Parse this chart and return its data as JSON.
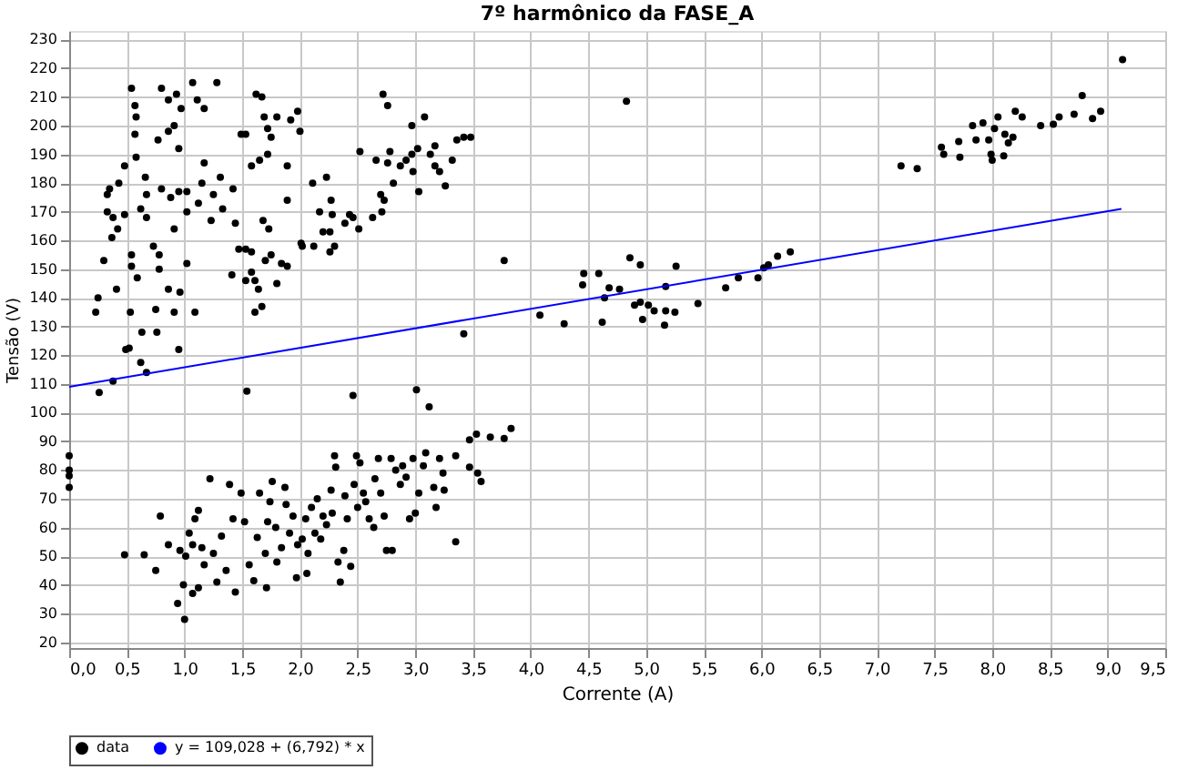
{
  "chart_data": {
    "type": "scatter",
    "title": "7º harmônico da FASE_A",
    "xlabel": "Corrente (A)",
    "ylabel": "Tensão (V)",
    "xlim": [
      0,
      9.5
    ],
    "ylim": [
      18,
      233
    ],
    "xticks": [
      {
        "value": 0,
        "label": "0,0"
      },
      {
        "value": 0.5,
        "label": "0,5"
      },
      {
        "value": 1,
        "label": "1,0"
      },
      {
        "value": 1.5,
        "label": "1,5"
      },
      {
        "value": 2,
        "label": "2,0"
      },
      {
        "value": 2.5,
        "label": "2,5"
      },
      {
        "value": 3,
        "label": "3,0"
      },
      {
        "value": 3.5,
        "label": "3,5"
      },
      {
        "value": 4,
        "label": "4,0"
      },
      {
        "value": 4.5,
        "label": "4,5"
      },
      {
        "value": 5,
        "label": "5,0"
      },
      {
        "value": 5.5,
        "label": "5,5"
      },
      {
        "value": 6,
        "label": "6,0"
      },
      {
        "value": 6.5,
        "label": "6,5"
      },
      {
        "value": 7,
        "label": "7,0"
      },
      {
        "value": 7.5,
        "label": "7,5"
      },
      {
        "value": 8,
        "label": "8,0"
      },
      {
        "value": 8.5,
        "label": "8,5"
      },
      {
        "value": 9,
        "label": "9,0"
      },
      {
        "value": 9.5,
        "label": "9,5"
      }
    ],
    "yticks": [
      20,
      30,
      40,
      50,
      60,
      70,
      80,
      90,
      100,
      110,
      120,
      130,
      140,
      150,
      160,
      170,
      180,
      190,
      200,
      210,
      220,
      230
    ],
    "grid": true,
    "legend": "bottom",
    "series": [
      {
        "name": "data",
        "marker": "circle",
        "color": "#000000",
        "x": [
          0.23,
          0.25,
          0.3,
          0.33,
          0.35,
          0.33,
          0.38,
          0.48,
          0.41,
          0.37,
          0.42,
          0.43,
          0.48,
          0.54,
          0.57,
          0.58,
          0.57,
          0.58,
          0.54,
          0.53,
          0.54,
          0.59,
          0.66,
          0.67,
          0.62,
          0.67,
          0.73,
          0.78,
          0.78,
          0.8,
          0.86,
          0.86,
          0.77,
          0.91,
          0.93,
          0.97,
          0.95,
          0.8,
          0.88,
          0.95,
          1.02,
          1.02,
          0.91,
          0.86,
          0.75,
          0.91,
          0.96,
          1.02,
          1.07,
          1.11,
          1.17,
          1.09,
          1.17,
          1.15,
          1.12,
          1.23,
          1.31,
          1.28,
          1.25,
          1.42,
          1.33,
          1.44,
          1.49,
          1.53,
          1.58,
          1.62,
          1.67,
          1.69,
          1.72,
          1.75,
          1.8,
          1.92,
          1.98,
          2.0,
          1.72,
          1.65,
          1.89,
          1.89,
          1.68,
          1.73,
          1.47,
          1.53,
          1.58,
          1.7,
          1.75,
          1.58,
          1.61,
          1.53,
          1.64,
          1.67,
          1.61,
          1.84,
          1.89,
          1.8,
          1.41,
          2.01,
          2.02,
          2.12,
          2.11,
          2.17,
          2.2,
          2.23,
          2.26,
          2.27,
          2.28,
          2.3,
          2.26,
          2.39,
          2.43,
          2.46,
          2.51,
          2.52,
          2.63,
          2.66,
          2.7,
          2.73,
          2.71,
          2.72,
          2.76,
          2.76,
          2.78,
          2.81,
          2.87,
          2.92,
          2.97,
          2.97,
          2.98,
          3.03,
          3.02,
          3.08,
          3.13,
          3.17,
          3.17,
          3.21,
          3.26,
          3.32,
          3.36,
          3.42,
          3.48,
          3.77,
          4.08,
          4.46,
          4.59,
          4.45,
          4.68,
          4.77,
          4.64,
          4.62,
          4.86,
          4.95,
          5.17,
          5.26,
          4.83,
          4.9,
          4.95,
          5.02,
          5.07,
          5.17,
          4.97,
          5.16,
          5.25,
          5.45,
          5.69,
          5.8,
          5.97,
          6.02,
          6.06,
          6.14,
          6.25,
          7.21,
          7.35,
          7.56,
          7.58,
          7.71,
          7.72,
          7.83,
          7.86,
          7.92,
          7.97,
          7.99,
          8.0,
          8.02,
          8.05,
          8.1,
          8.11,
          8.14,
          8.18,
          8.2,
          8.26,
          8.42,
          8.53,
          8.58,
          8.71,
          8.78,
          8.87,
          8.94,
          9.13,
          0,
          0,
          0,
          0,
          0.26,
          0.38,
          0.49,
          0.52,
          0.62,
          0.67,
          0.63,
          0.76,
          0.95,
          0.48,
          0.65,
          0.75,
          0.79,
          0.86,
          0.94,
          1.0,
          0.99,
          0.96,
          1.01,
          1.04,
          1.07,
          1.09,
          1.12,
          1.15,
          1.17,
          1.07,
          1.12,
          1.22,
          1.25,
          1.28,
          1.32,
          1.36,
          1.39,
          1.42,
          1.44,
          1.49,
          1.52,
          1.56,
          1.6,
          1.63,
          1.65,
          1.7,
          1.71,
          1.72,
          1.74,
          1.76,
          1.79,
          1.8,
          1.84,
          1.87,
          1.88,
          1.91,
          1.94,
          1.97,
          1.98,
          2.02,
          2.05,
          2.06,
          2.07,
          2.1,
          2.13,
          2.15,
          2.18,
          2.2,
          2.23,
          2.27,
          2.28,
          2.3,
          2.31,
          2.33,
          2.35,
          2.38,
          2.39,
          2.41,
          2.44,
          2.46,
          2.47,
          2.49,
          2.5,
          2.52,
          2.55,
          2.57,
          2.6,
          2.64,
          2.65,
          2.68,
          2.7,
          2.73,
          2.75,
          2.79,
          2.8,
          2.83,
          2.87,
          2.89,
          2.92,
          2.95,
          2.98,
          3.0,
          3.01,
          3.03,
          3.07,
          3.09,
          3.12,
          3.16,
          3.18,
          3.21,
          3.24,
          3.25,
          3.35,
          3.35,
          3.42,
          3.47,
          3.47,
          3.53,
          3.54,
          3.57,
          3.65,
          3.77,
          3.83,
          4.29,
          1.54
        ],
        "values": [
          135,
          140,
          153,
          176,
          178,
          170,
          168,
          169,
          143,
          161,
          164,
          180,
          186,
          213,
          207,
          203,
          197,
          189,
          155,
          135,
          151,
          147,
          182,
          176,
          171,
          168,
          158,
          155,
          150,
          213,
          209,
          198,
          195,
          200,
          211,
          206,
          192,
          178,
          175,
          177,
          177,
          170,
          164,
          143,
          136,
          135,
          142,
          152,
          215,
          209,
          206,
          135,
          187,
          180,
          173,
          167,
          182,
          215,
          176,
          178,
          171,
          166,
          197,
          197,
          186,
          211,
          210,
          203,
          199,
          196,
          203,
          202,
          205,
          198,
          190,
          188,
          186,
          174,
          167,
          164,
          157,
          157,
          156,
          153,
          155,
          149,
          146,
          146,
          143,
          137,
          135,
          152,
          151,
          145,
          148,
          159,
          158,
          158,
          180,
          170,
          163,
          182,
          163,
          174,
          169,
          158,
          156,
          166,
          169,
          168,
          164,
          191,
          168,
          188,
          176,
          174,
          170,
          211,
          207,
          187,
          191,
          180,
          186,
          188,
          200,
          190,
          184,
          177,
          192,
          203,
          190,
          193,
          186,
          184,
          179,
          188,
          195,
          196,
          196,
          153,
          134,
          148.5,
          148.5,
          144.5,
          143.5,
          143,
          140,
          131.5,
          154,
          151.5,
          144,
          151,
          208.5,
          137.5,
          138.5,
          137.5,
          135.5,
          135.5,
          132.5,
          130.5,
          135,
          138,
          143.5,
          147,
          147,
          150.5,
          151.5,
          154.5,
          156,
          186,
          185,
          192.5,
          190,
          194.5,
          189,
          200,
          195,
          201,
          195,
          190,
          188,
          199,
          203,
          189.5,
          197,
          194,
          196,
          205,
          203,
          200,
          200.5,
          203,
          204,
          210.5,
          202.5,
          205,
          223,
          85,
          80,
          78,
          74,
          107,
          111,
          122,
          122.5,
          117.5,
          114,
          128,
          128,
          122,
          50.5,
          50.5,
          45,
          64,
          54,
          33.5,
          28,
          40,
          52,
          50,
          58,
          54,
          63,
          66,
          53,
          47,
          37,
          39,
          77,
          51,
          41,
          57,
          45,
          75,
          63,
          37.5,
          72,
          62,
          47,
          41.5,
          56.5,
          72,
          51,
          39,
          62,
          69,
          76,
          60,
          48,
          53,
          74,
          68,
          58,
          64,
          42.5,
          54,
          56,
          63,
          44,
          51,
          67,
          58,
          70,
          56,
          64,
          61,
          73,
          65,
          85,
          81,
          48,
          41,
          52,
          71,
          63,
          46.5,
          106,
          75,
          85,
          67,
          82.5,
          72,
          69,
          63,
          60,
          77,
          84,
          72,
          64,
          52,
          84,
          52,
          80,
          75,
          81.5,
          77.5,
          63,
          84,
          65,
          108,
          72,
          81.5,
          86,
          102,
          74,
          67,
          84,
          79,
          73,
          55,
          85,
          127.5,
          90.5,
          81,
          92.5,
          79,
          76,
          91.5,
          91,
          94.5,
          131,
          107.5
        ]
      },
      {
        "name": "y = 109,028 + (6,792) * x",
        "type": "line",
        "line_style": "solid",
        "marker": "none",
        "color": "#0000ff",
        "x": [
          0,
          9.12
        ],
        "values": [
          109,
          171
        ]
      }
    ]
  }
}
